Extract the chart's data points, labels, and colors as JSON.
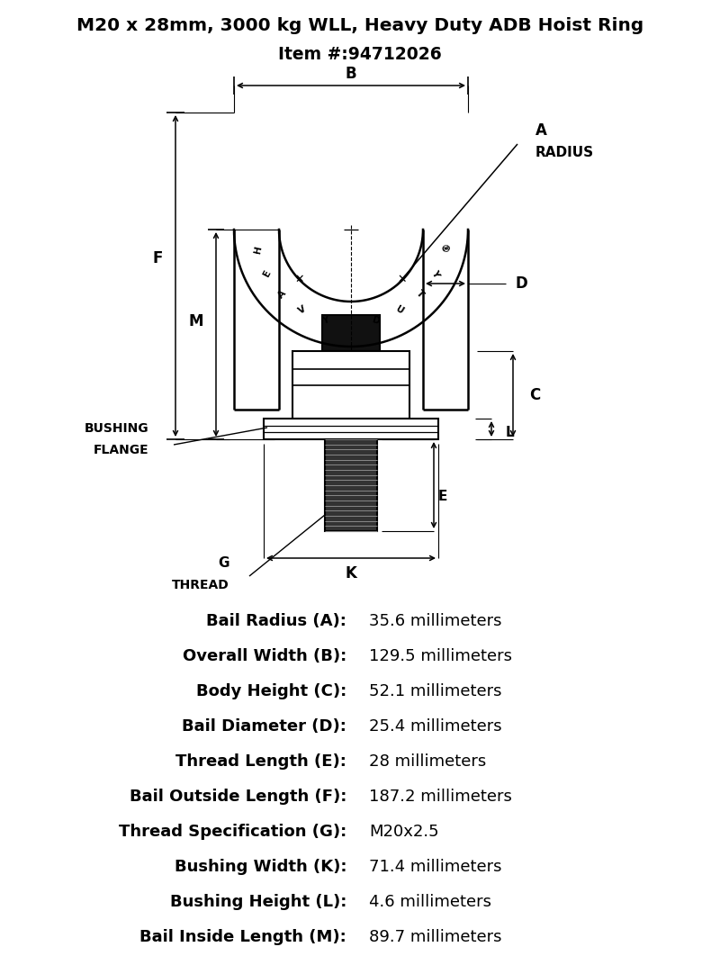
{
  "title_line1": "M20 x 28mm, 3000 kg WLL, Heavy Duty ADB Hoist Ring",
  "title_line2": "Item #:94712026",
  "specs": [
    {
      "label": "Bail Radius (A):",
      "value": "35.6 millimeters"
    },
    {
      "label": "Overall Width (B):",
      "value": "129.5 millimeters"
    },
    {
      "label": "Body Height (C):",
      "value": "52.1 millimeters"
    },
    {
      "label": "Bail Diameter (D):",
      "value": "25.4 millimeters"
    },
    {
      "label": "Thread Length (E):",
      "value": "28 millimeters"
    },
    {
      "label": "Bail Outside Length (F):",
      "value": "187.2 millimeters"
    },
    {
      "label": "Thread Specification (G):",
      "value": "M20x2.5"
    },
    {
      "label": "Bushing Width (K):",
      "value": "71.4 millimeters"
    },
    {
      "label": "Bushing Height (L):",
      "value": "4.6 millimeters"
    },
    {
      "label": "Bail Inside Length (M):",
      "value": "89.7 millimeters"
    }
  ],
  "bg_color": "#ffffff",
  "line_color": "#000000",
  "title_fontsize": 14.5,
  "spec_label_fontsize": 13,
  "spec_value_fontsize": 13
}
